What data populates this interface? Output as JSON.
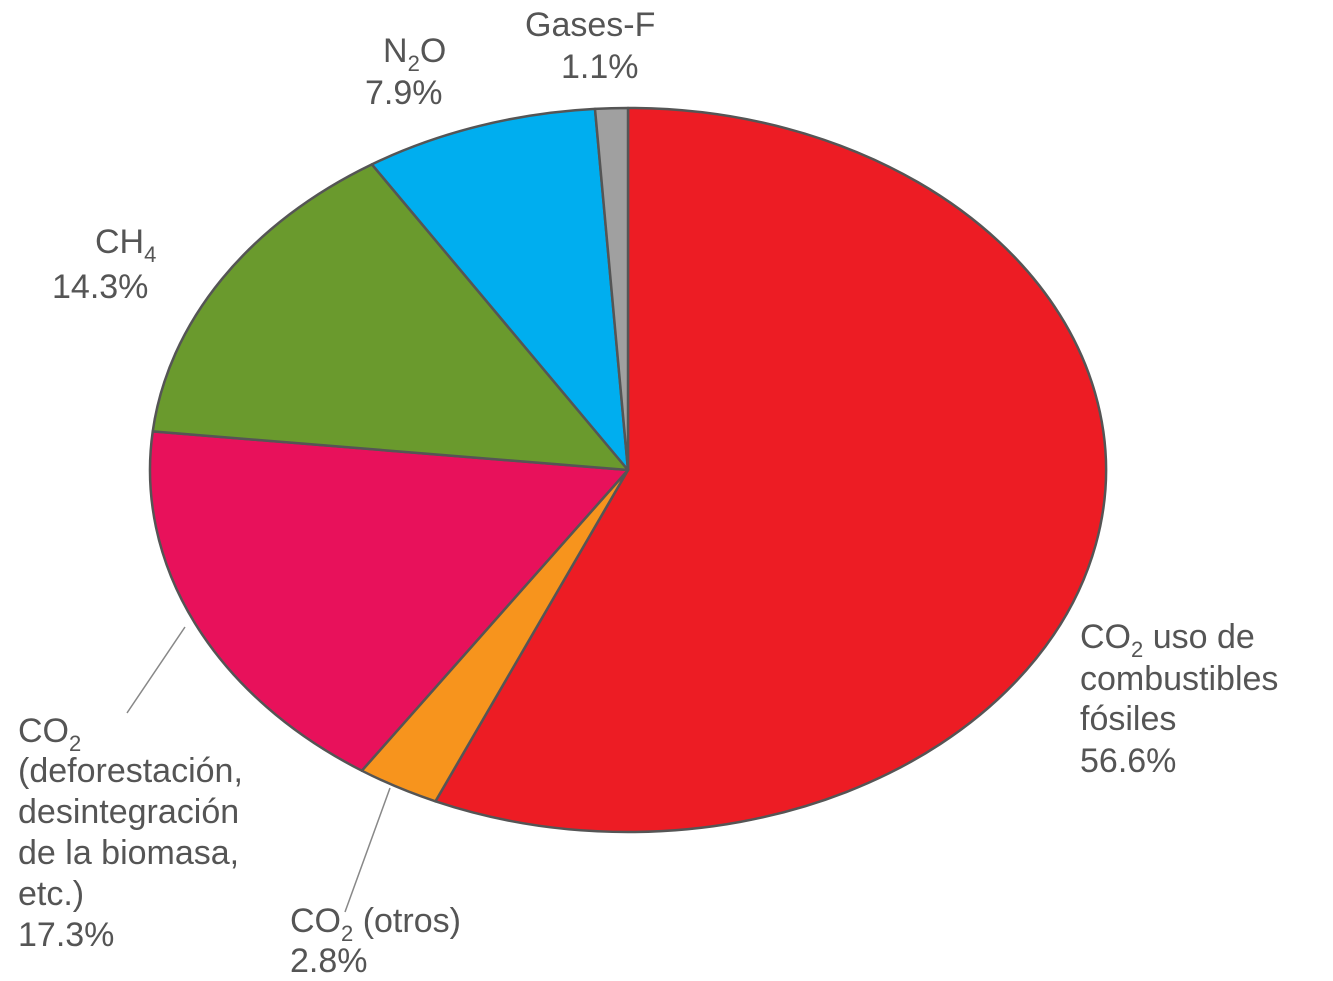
{
  "chart_data": {
    "type": "pie",
    "slices": [
      {
        "label": "CO2 uso de combustibles fósiles",
        "value": 56.6,
        "value_label": "56.6%",
        "color": "#ed1c24"
      },
      {
        "label": "CO2 (otros)",
        "value": 2.8,
        "value_label": "2.8%",
        "color": "#f7941d"
      },
      {
        "label": "CO2 (deforestación, desintegración de la biomasa, etc.)",
        "value": 17.3,
        "value_label": "17.3%",
        "color": "#e8115b"
      },
      {
        "label": "CH4",
        "value": 14.3,
        "value_label": "14.3%",
        "color": "#6a9a2d"
      },
      {
        "label": "N2O",
        "value": 7.9,
        "value_label": "7.9%",
        "color": "#00aeef"
      },
      {
        "label": "Gases-F",
        "value": 1.1,
        "value_label": "1.1%",
        "color": "#a0a0a0"
      }
    ],
    "start": "12 o'clock",
    "direction": "clockwise",
    "labels": {
      "co2_fossil": {
        "l1_pre": "CO",
        "l1_sub": "2",
        "l1_post": " uso de",
        "l2": "combustibles",
        "l3": "fósiles",
        "val": "56.6%"
      },
      "co2_other": {
        "l1_pre": "CO",
        "l1_sub": "2",
        "l1_post": " (otros)",
        "val": "2.8%"
      },
      "co2_defor": {
        "l1_pre": "CO",
        "l1_sub": "2",
        "l2": "(deforestación,",
        "l3": "desintegración",
        "l4": "de la biomasa,",
        "l5": "etc.)",
        "val": "17.3%"
      },
      "ch4": {
        "l1_pre": "CH",
        "l1_sub": "4",
        "val": "14.3%"
      },
      "n2o": {
        "l1_pre": "N",
        "l1_sub": "2",
        "l1_post": "O",
        "val": "7.9%"
      },
      "gases_f": {
        "l1": "Gases-F",
        "val": "1.1%"
      }
    }
  }
}
